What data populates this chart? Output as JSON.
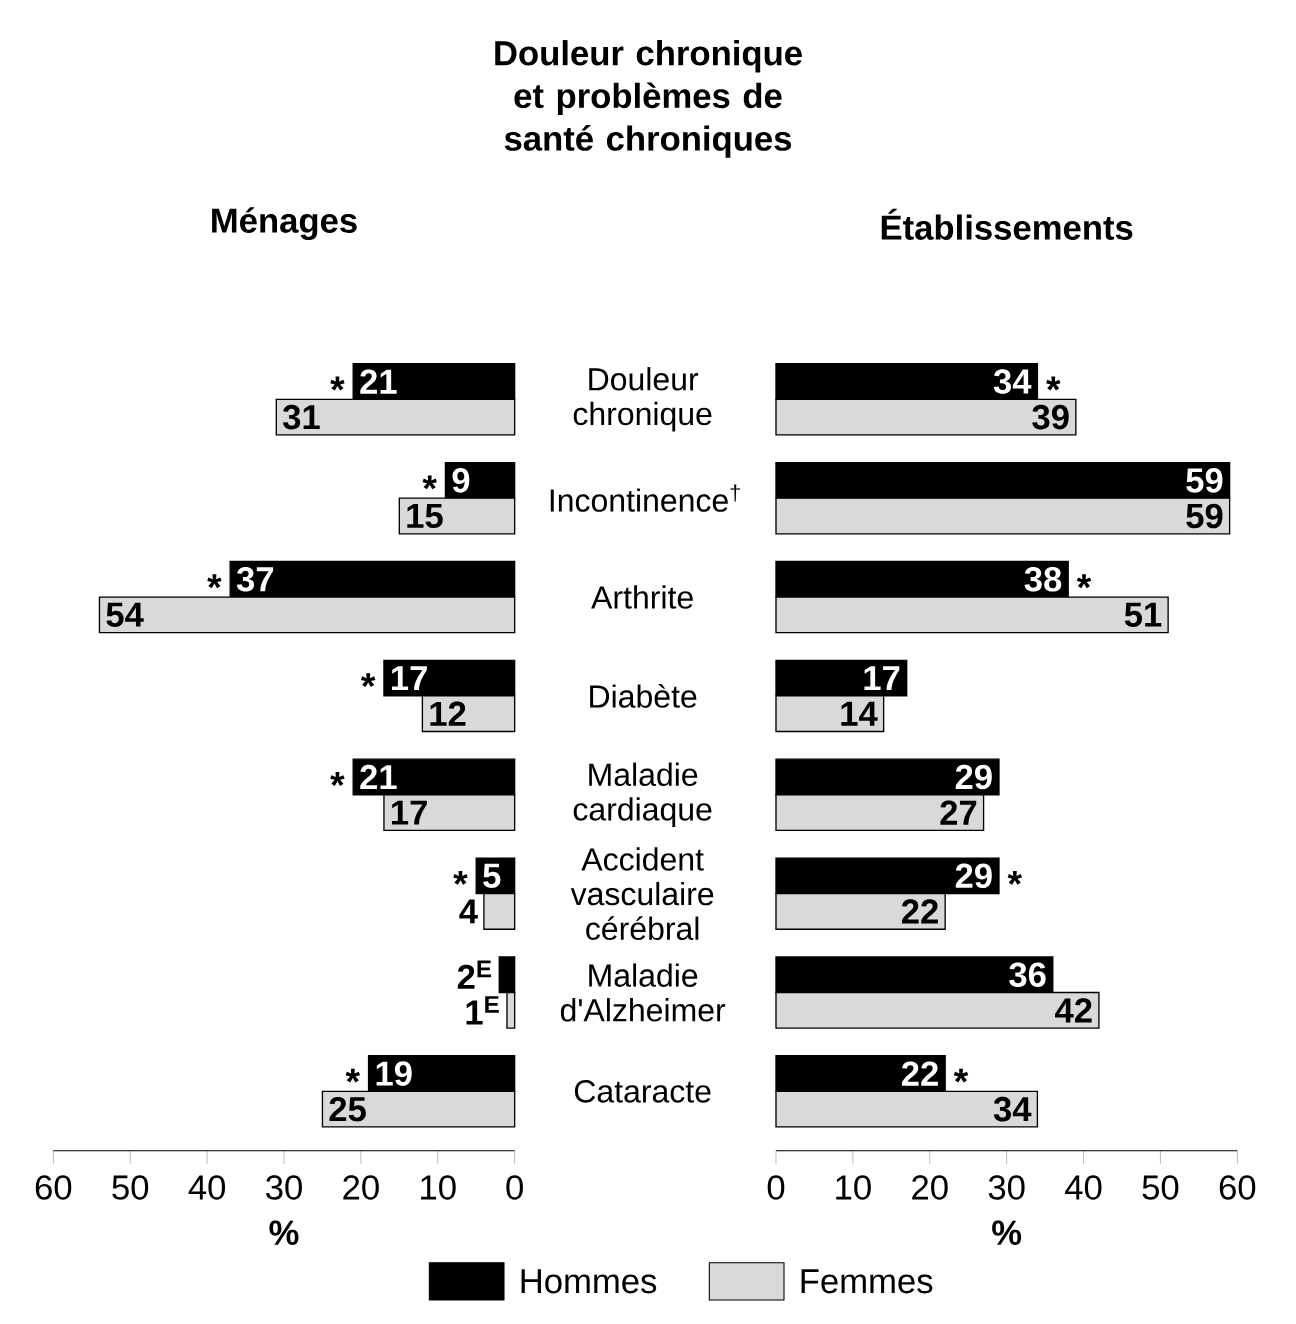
{
  "chart_data": [
    {
      "type": "bar",
      "orientation": "horizontal",
      "title": "Ménages",
      "xlabel": "%",
      "legend": "bottom",
      "categories": [
        "Douleur chronique",
        "Incontinence$^{†}$",
        "Arthrite",
        "Diabète",
        "Maladie cardiaque",
        "Accident vasculaire cérébral",
        "Maladie d'Alzheimer",
        "Cataracte"
      ],
      "xlim": [
        60,
        0
      ],
      "xticks": [
        60,
        50,
        40,
        30,
        20,
        10,
        0
      ],
      "series": [
        {
          "name": "Hommes",
          "color": "#000000",
          "values": [
            21,
            9,
            37,
            17,
            21,
            5,
            2,
            19
          ],
          "value_labels": [
            "21",
            "9",
            "37",
            "17",
            "21",
            "5",
            "2$^{E}$",
            "19"
          ]
        },
        {
          "name": "Femmes",
          "color": "#d9d9d9",
          "values": [
            31,
            15,
            54,
            12,
            17,
            4,
            1,
            25
          ],
          "value_labels": [
            "31",
            "15",
            "54",
            "12",
            "17",
            "4",
            "1$^{E}$",
            "25"
          ]
        }
      ],
      "annotations": [
        "Douleur chronique et problèmes de santé chroniques",
        {
          "text": "*",
          "x": 21,
          "y": "Douleur chronique"
        },
        {
          "text": "*",
          "x": 9,
          "y": "Incontinence$^{†}$"
        },
        {
          "text": "*",
          "x": 37,
          "y": "Arthrite"
        },
        {
          "text": "*",
          "x": 17,
          "y": "Diabète"
        },
        {
          "text": "*",
          "x": 21,
          "y": "Maladie cardiaque"
        },
        {
          "text": "*",
          "x": 5,
          "y": "Accident vasculaire cérébral"
        },
        {
          "text": "*",
          "x": 19,
          "y": "Cataracte"
        }
      ]
    },
    {
      "type": "bar",
      "orientation": "horizontal",
      "title": "Établissements",
      "xlabel": "%",
      "data_labels": true,
      "tick_labels": "x",
      "categories": [
        null,
        null,
        null,
        null,
        null,
        null,
        null,
        null
      ],
      "xlim": [
        0,
        60
      ],
      "xticks": [
        0,
        10,
        20,
        30,
        40,
        50,
        60
      ],
      "series": [
        {
          "color": "#000000",
          "values": [
            34,
            59,
            38,
            17,
            29,
            29,
            36,
            22
          ]
        },
        {
          "color": "#d9d9d9",
          "values": [
            39,
            59,
            51,
            14,
            27,
            22,
            42,
            34
          ]
        }
      ],
      "annotations": [
        {
          "text": "*",
          "x": 34
        },
        {
          "text": "*",
          "x": 38
        },
        {
          "text": "*",
          "x": 29
        },
        {
          "text": "*",
          "x": 22
        }
      ]
    }
  ]
}
